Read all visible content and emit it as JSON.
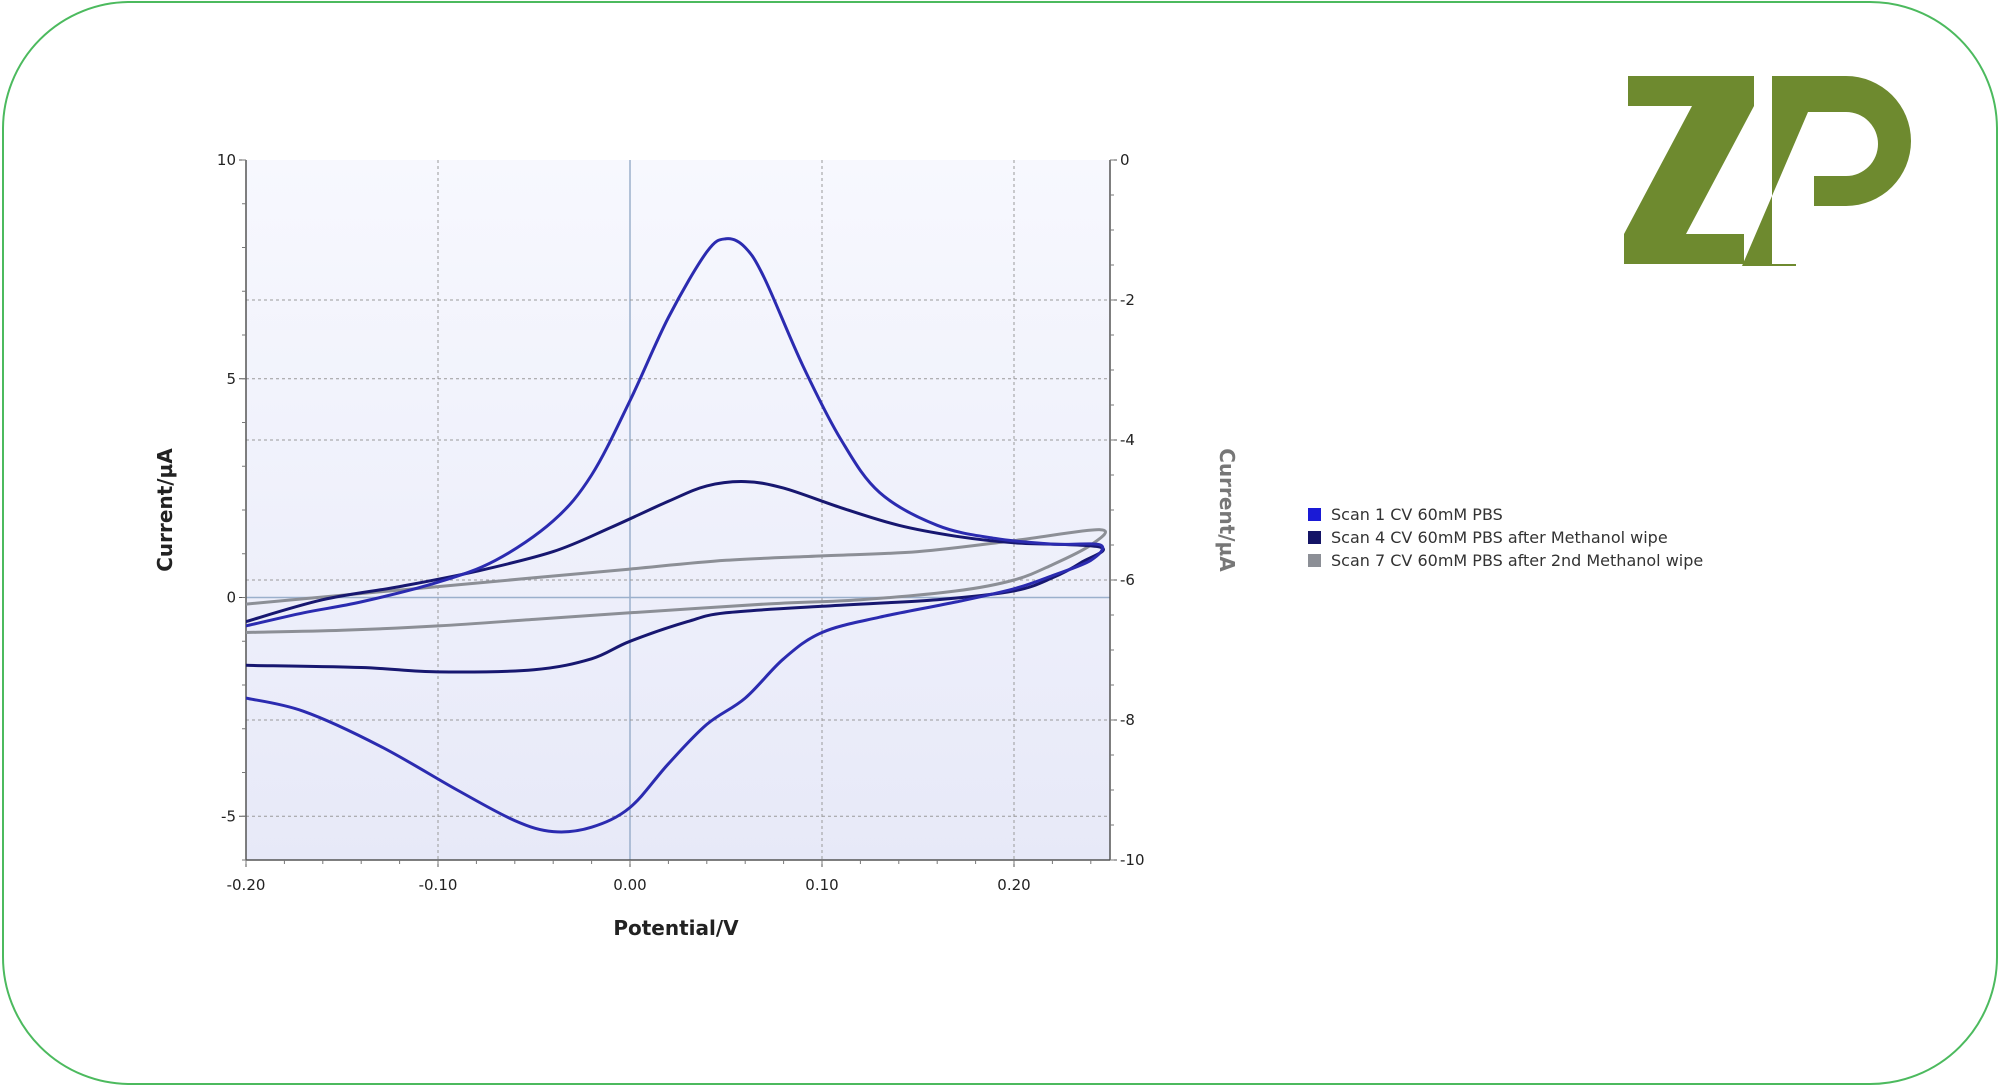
{
  "chart_data": {
    "type": "line",
    "xlabel": "Potential/V",
    "ylabel": "Current/µA",
    "ylabel_right": "Current/µA",
    "xlim": [
      -0.2,
      0.25
    ],
    "ylim": [
      -6,
      10
    ],
    "ylim_right": [
      -10,
      0
    ],
    "x_ticks": [
      -0.2,
      -0.1,
      0.0,
      0.1,
      0.2
    ],
    "x_tick_labels": [
      "-0.20",
      "-0.10",
      "0.00",
      "0.10",
      "0.20"
    ],
    "y_ticks": [
      -5,
      0,
      5,
      10
    ],
    "y_tick_labels": [
      "-5",
      "0",
      "5",
      "10"
    ],
    "y_right_ticks": [
      0,
      -2,
      -4,
      -6,
      -8,
      -10
    ],
    "y_right_tick_labels": [
      "0",
      "-2",
      "-4",
      "-6",
      "-8",
      "-10"
    ],
    "grid": true,
    "legend_position": "right",
    "series": [
      {
        "name": "Scan 1 CV 60mM PBS",
        "color": "#2b2bb0",
        "points": [
          [
            -0.2,
            -0.65
          ],
          [
            -0.17,
            -0.35
          ],
          [
            -0.14,
            -0.1
          ],
          [
            -0.1,
            0.35
          ],
          [
            -0.07,
            0.85
          ],
          [
            -0.04,
            1.75
          ],
          [
            -0.02,
            2.8
          ],
          [
            0.0,
            4.5
          ],
          [
            0.02,
            6.4
          ],
          [
            0.04,
            7.9
          ],
          [
            0.05,
            8.2
          ],
          [
            0.06,
            8.0
          ],
          [
            0.07,
            7.3
          ],
          [
            0.09,
            5.3
          ],
          [
            0.11,
            3.6
          ],
          [
            0.13,
            2.4
          ],
          [
            0.16,
            1.65
          ],
          [
            0.19,
            1.35
          ],
          [
            0.22,
            1.22
          ],
          [
            0.245,
            1.2
          ],
          [
            0.24,
            0.85
          ],
          [
            0.22,
            0.5
          ],
          [
            0.2,
            0.2
          ],
          [
            0.17,
            -0.1
          ],
          [
            0.13,
            -0.45
          ],
          [
            0.1,
            -0.8
          ],
          [
            0.08,
            -1.4
          ],
          [
            0.06,
            -2.3
          ],
          [
            0.04,
            -2.9
          ],
          [
            0.02,
            -3.8
          ],
          [
            0.0,
            -4.8
          ],
          [
            -0.02,
            -5.25
          ],
          [
            -0.04,
            -5.35
          ],
          [
            -0.06,
            -5.1
          ],
          [
            -0.09,
            -4.4
          ],
          [
            -0.13,
            -3.4
          ],
          [
            -0.17,
            -2.6
          ],
          [
            -0.2,
            -2.3
          ]
        ]
      },
      {
        "name": "Scan 4 CV 60mM PBS after Methanol wipe",
        "color": "#171770",
        "points": [
          [
            -0.2,
            -0.55
          ],
          [
            -0.16,
            -0.05
          ],
          [
            -0.12,
            0.25
          ],
          [
            -0.08,
            0.6
          ],
          [
            -0.04,
            1.05
          ],
          [
            -0.01,
            1.6
          ],
          [
            0.02,
            2.2
          ],
          [
            0.04,
            2.55
          ],
          [
            0.06,
            2.65
          ],
          [
            0.08,
            2.5
          ],
          [
            0.11,
            2.05
          ],
          [
            0.14,
            1.65
          ],
          [
            0.17,
            1.4
          ],
          [
            0.2,
            1.25
          ],
          [
            0.245,
            1.15
          ],
          [
            0.235,
            0.8
          ],
          [
            0.22,
            0.45
          ],
          [
            0.2,
            0.15
          ],
          [
            0.16,
            -0.05
          ],
          [
            0.1,
            -0.2
          ],
          [
            0.05,
            -0.35
          ],
          [
            0.03,
            -0.55
          ],
          [
            0.0,
            -1.0
          ],
          [
            -0.02,
            -1.4
          ],
          [
            -0.05,
            -1.65
          ],
          [
            -0.1,
            -1.7
          ],
          [
            -0.14,
            -1.6
          ],
          [
            -0.2,
            -1.55
          ]
        ]
      },
      {
        "name": "Scan 7 CV 60mM PBS after 2nd Methanol wipe",
        "color": "#8c8f96",
        "points": [
          [
            -0.2,
            -0.15
          ],
          [
            -0.15,
            0.05
          ],
          [
            -0.1,
            0.25
          ],
          [
            -0.05,
            0.45
          ],
          [
            0.0,
            0.65
          ],
          [
            0.05,
            0.85
          ],
          [
            0.1,
            0.95
          ],
          [
            0.15,
            1.05
          ],
          [
            0.2,
            1.3
          ],
          [
            0.245,
            1.55
          ],
          [
            0.24,
            1.2
          ],
          [
            0.22,
            0.75
          ],
          [
            0.2,
            0.4
          ],
          [
            0.17,
            0.15
          ],
          [
            0.12,
            -0.05
          ],
          [
            0.07,
            -0.15
          ],
          [
            0.0,
            -0.35
          ],
          [
            -0.05,
            -0.5
          ],
          [
            -0.1,
            -0.65
          ],
          [
            -0.15,
            -0.75
          ],
          [
            -0.2,
            -0.8
          ]
        ]
      }
    ]
  },
  "logo": {
    "text": "ZP",
    "color": "#6e8a2f"
  }
}
